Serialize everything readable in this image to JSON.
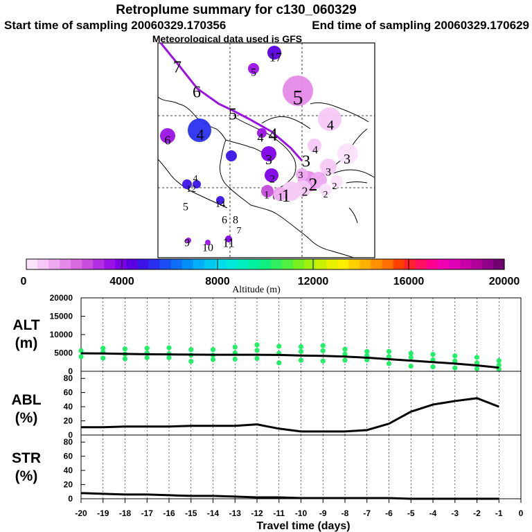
{
  "title": "Retroplume summary for c130_060329",
  "start_time": "Start time of sampling 20060329.170356",
  "end_time": "End time of sampling 20060329.170629",
  "met_data": "Meteorological data used is GFS",
  "colorbar": {
    "title": "Altitude (m)",
    "ticks": [
      "0",
      "4000",
      "8000",
      "12000",
      "16000",
      "20000"
    ],
    "colors": [
      "#fbe3fb",
      "#f5c8f5",
      "#eeaaf0",
      "#e58ae9",
      "#d86ae2",
      "#c84ddc",
      "#b22ee0",
      "#9b12e6",
      "#7e00e8",
      "#5a00e0",
      "#3c14e8",
      "#2a30f0",
      "#1a4ef4",
      "#0e6ef6",
      "#0090f8",
      "#00b0f6",
      "#00c8ee",
      "#00dcea",
      "#00e8d8",
      "#00eebe",
      "#00f0a0",
      "#10f080",
      "#30f060",
      "#50f040",
      "#78f020",
      "#a0f010",
      "#c8f000",
      "#e8f000",
      "#ffee00",
      "#ffd000",
      "#ffb000",
      "#ff9000",
      "#ff7000",
      "#ff4000",
      "#ff2030",
      "#ff1060",
      "#ff0090",
      "#f000b0",
      "#e000b8",
      "#c800a8",
      "#b00098",
      "#900088",
      "#700070"
    ]
  },
  "map": {
    "track_labels": [
      "7",
      "6",
      "5",
      "4",
      "3",
      "2",
      "1"
    ],
    "cluster_labels": [
      "17",
      "5",
      "5",
      "4",
      "4",
      "6",
      "4",
      "3",
      "4",
      "3",
      "3",
      "3",
      "2",
      "2",
      "2",
      "2",
      "1",
      "1",
      "4",
      "12",
      "5",
      "14",
      "6",
      "8",
      "7",
      "9",
      "10",
      "11"
    ]
  },
  "chart_data": [
    {
      "type": "scatter",
      "panel_label": [
        "ALT",
        "(m)"
      ],
      "ylim": [
        0,
        20000
      ],
      "yticks": [
        "0",
        "5000",
        "10000",
        "15000",
        "20000"
      ],
      "xlabel": "Travel time (days)",
      "median_line": {
        "x": [
          -20,
          -19,
          -18,
          -17,
          -16,
          -15,
          -14,
          -13,
          -12,
          -11,
          -10,
          -9,
          -8,
          -7,
          -6,
          -5,
          -4,
          -3,
          -2,
          -1
        ],
        "y": [
          4900,
          4850,
          4750,
          4650,
          4600,
          4550,
          4500,
          4500,
          4500,
          4450,
          4300,
          4200,
          4000,
          3700,
          3300,
          2900,
          2500,
          2100,
          1600,
          1000
        ]
      },
      "points": [
        {
          "x": -20,
          "y": 5600
        },
        {
          "x": -20,
          "y": 4000
        },
        {
          "x": -19,
          "y": 6300
        },
        {
          "x": -19,
          "y": 5200
        },
        {
          "x": -19,
          "y": 3600
        },
        {
          "x": -18,
          "y": 6100
        },
        {
          "x": -18,
          "y": 4700
        },
        {
          "x": -18,
          "y": 3400
        },
        {
          "x": -17,
          "y": 6300
        },
        {
          "x": -17,
          "y": 5000
        },
        {
          "x": -17,
          "y": 3700
        },
        {
          "x": -16,
          "y": 6400
        },
        {
          "x": -16,
          "y": 4800
        },
        {
          "x": -16,
          "y": 3700
        },
        {
          "x": -15,
          "y": 5900
        },
        {
          "x": -15,
          "y": 4400
        },
        {
          "x": -15,
          "y": 2700
        },
        {
          "x": -14,
          "y": 5900
        },
        {
          "x": -14,
          "y": 4400
        },
        {
          "x": -14,
          "y": 3200
        },
        {
          "x": -13,
          "y": 6600
        },
        {
          "x": -13,
          "y": 5000
        },
        {
          "x": -13,
          "y": 3300
        },
        {
          "x": -12,
          "y": 7200
        },
        {
          "x": -12,
          "y": 5700
        },
        {
          "x": -12,
          "y": 3500
        },
        {
          "x": -11,
          "y": 6800
        },
        {
          "x": -11,
          "y": 4900
        },
        {
          "x": -11,
          "y": 2300
        },
        {
          "x": -10,
          "y": 6700
        },
        {
          "x": -10,
          "y": 5400
        },
        {
          "x": -10,
          "y": 3000
        },
        {
          "x": -9,
          "y": 7000
        },
        {
          "x": -9,
          "y": 5600
        },
        {
          "x": -9,
          "y": 2800
        },
        {
          "x": -8,
          "y": 6000
        },
        {
          "x": -8,
          "y": 4700
        },
        {
          "x": -8,
          "y": 3000
        },
        {
          "x": -7,
          "y": 5400
        },
        {
          "x": -7,
          "y": 4300
        },
        {
          "x": -7,
          "y": 3100
        },
        {
          "x": -6,
          "y": 5400
        },
        {
          "x": -6,
          "y": 4000
        },
        {
          "x": -6,
          "y": 2100
        },
        {
          "x": -5,
          "y": 4900
        },
        {
          "x": -5,
          "y": 3800
        },
        {
          "x": -5,
          "y": 1400
        },
        {
          "x": -4,
          "y": 4600
        },
        {
          "x": -4,
          "y": 3100
        },
        {
          "x": -4,
          "y": 1200
        },
        {
          "x": -3,
          "y": 4200
        },
        {
          "x": -3,
          "y": 2800
        },
        {
          "x": -3,
          "y": 900
        },
        {
          "x": -2,
          "y": 3800
        },
        {
          "x": -2,
          "y": 2300
        },
        {
          "x": -2,
          "y": 700
        },
        {
          "x": -1,
          "y": 2900
        },
        {
          "x": -1,
          "y": 1700
        },
        {
          "x": -1,
          "y": 600
        }
      ]
    },
    {
      "type": "line",
      "panel_label": [
        "ABL",
        "(%)"
      ],
      "ylim": [
        0,
        90
      ],
      "yticks": [
        "0",
        "20",
        "40",
        "60",
        "80"
      ],
      "x": [
        -20,
        -19,
        -18,
        -17,
        -16,
        -15,
        -14,
        -13,
        -12,
        -11,
        -10,
        -9,
        -8,
        -7,
        -6,
        -5,
        -4,
        -3,
        -2,
        -1
      ],
      "values": [
        11,
        11,
        12,
        12,
        12,
        13,
        13,
        13,
        15,
        9,
        5,
        5,
        5,
        7,
        16,
        33,
        43,
        48,
        52,
        40
      ]
    },
    {
      "type": "line",
      "panel_label": [
        "STR",
        "(%)"
      ],
      "ylim": [
        0,
        90
      ],
      "yticks": [
        "0",
        "20",
        "40",
        "60",
        "80"
      ],
      "x": [
        -20,
        -19,
        -18,
        -17,
        -16,
        -15,
        -14,
        -13,
        -12,
        -11,
        -10,
        -9,
        -8,
        -7,
        -6,
        -5,
        -4,
        -3,
        -2,
        -1
      ],
      "values": [
        8,
        7,
        6,
        6,
        5,
        4,
        4,
        3,
        2,
        2,
        1,
        1,
        1,
        1,
        1,
        0,
        0,
        0,
        0,
        0
      ]
    }
  ],
  "x_axis": {
    "ticks": [
      "-20",
      "-19",
      "-18",
      "-17",
      "-16",
      "-15",
      "-14",
      "-13",
      "-12",
      "-11",
      "-10",
      "-9",
      "-8",
      "-7",
      "-6",
      "-5",
      "-4",
      "-3",
      "-2",
      "-1",
      "0"
    ],
    "title": "Travel time (days)"
  }
}
